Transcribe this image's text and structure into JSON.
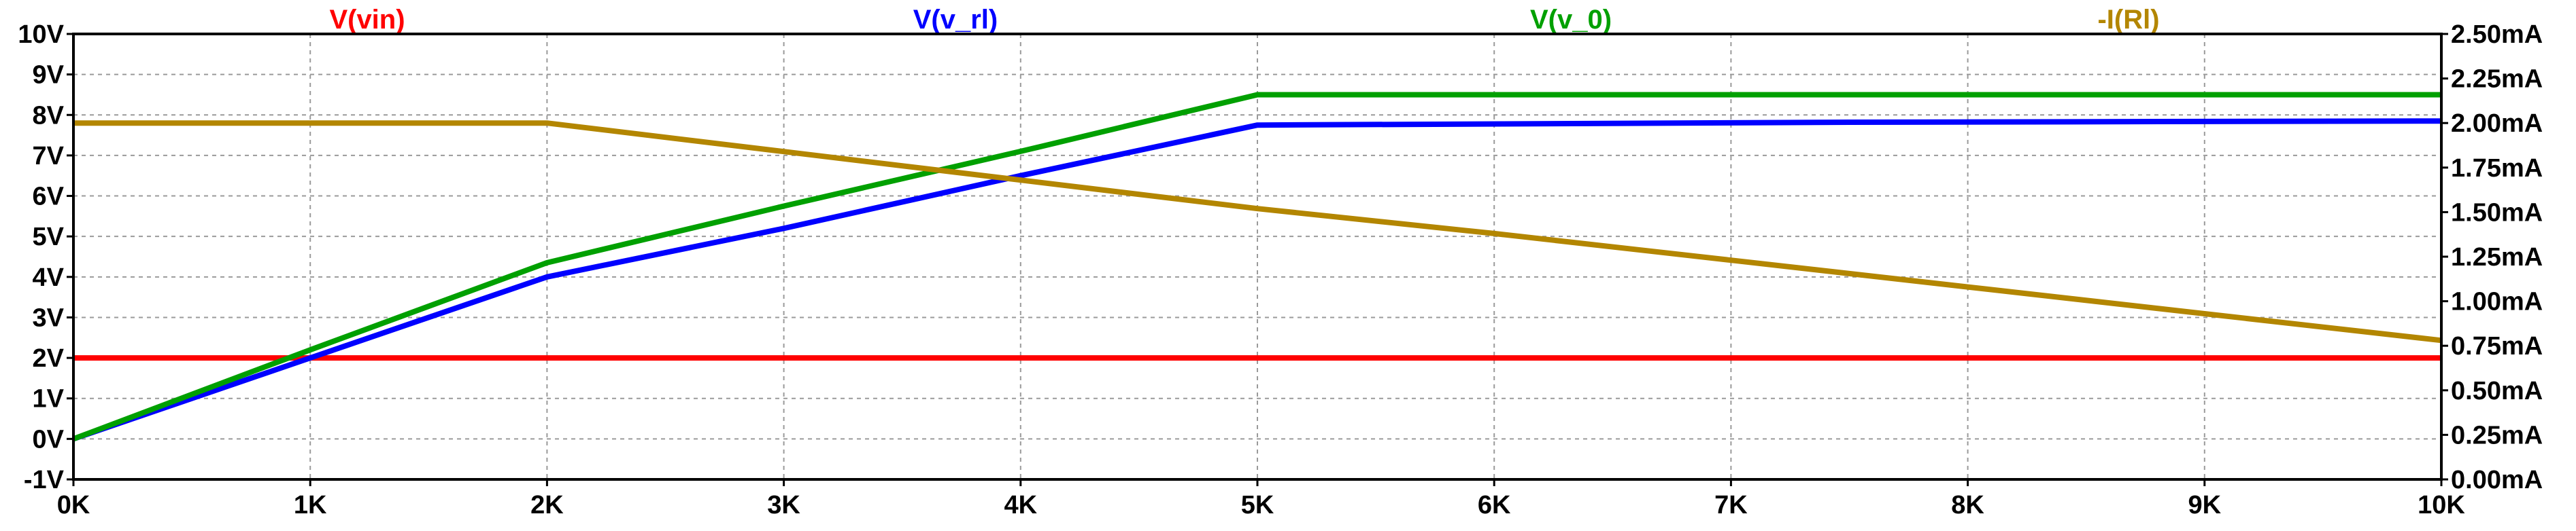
{
  "chart_data": {
    "type": "line",
    "title": "",
    "xlabel": "",
    "ylabel": "",
    "x_ticks": [
      "0K",
      "1K",
      "2K",
      "3K",
      "4K",
      "5K",
      "6K",
      "7K",
      "8K",
      "9K",
      "10K"
    ],
    "x_tick_values": [
      0,
      1000,
      2000,
      3000,
      4000,
      5000,
      6000,
      7000,
      8000,
      9000,
      10000
    ],
    "xlim": [
      0,
      10000
    ],
    "left_axis": {
      "unit": "V",
      "ylim": [
        -1,
        10
      ],
      "ticks": [
        "-1V",
        "0V",
        "1V",
        "2V",
        "3V",
        "4V",
        "5V",
        "6V",
        "7V",
        "8V",
        "9V",
        "10V"
      ],
      "tick_values": [
        -1,
        0,
        1,
        2,
        3,
        4,
        5,
        6,
        7,
        8,
        9,
        10
      ]
    },
    "right_axis": {
      "unit": "mA",
      "ylim": [
        0,
        2.5
      ],
      "ticks": [
        "0.00mA",
        "0.25mA",
        "0.50mA",
        "0.75mA",
        "1.00mA",
        "1.25mA",
        "1.50mA",
        "1.75mA",
        "2.00mA",
        "2.25mA",
        "2.50mA"
      ],
      "tick_values": [
        0,
        0.25,
        0.5,
        0.75,
        1.0,
        1.25,
        1.5,
        1.75,
        2.0,
        2.25,
        2.5
      ]
    },
    "grid": true,
    "legend_placement": "top",
    "series": [
      {
        "name": "V(vin)",
        "color": "#ff0000",
        "axis": "left",
        "x": [
          0,
          10000
        ],
        "y": [
          2,
          2
        ]
      },
      {
        "name": "V(v_rl)",
        "color": "#0000ff",
        "axis": "left",
        "x": [
          0,
          1000,
          2000,
          3000,
          4000,
          5000,
          7500,
          10000
        ],
        "y": [
          0,
          2.0,
          4.0,
          5.2,
          6.5,
          7.75,
          7.82,
          7.85
        ]
      },
      {
        "name": "V(v_0)",
        "color": "#00a000",
        "axis": "left",
        "x": [
          0,
          1000,
          2000,
          3000,
          4000,
          5000,
          10000
        ],
        "y": [
          0,
          2.2,
          4.35,
          5.75,
          7.1,
          8.5,
          8.5
        ]
      },
      {
        "name": "-I(Rl)",
        "color": "#b38600",
        "axis": "right",
        "x": [
          0,
          2000,
          3000,
          4000,
          5000,
          6000,
          7000,
          8000,
          9000,
          10000
        ],
        "y": [
          2.0,
          2.0,
          1.84,
          1.68,
          1.52,
          1.38,
          1.23,
          1.08,
          0.93,
          0.78
        ]
      }
    ]
  }
}
